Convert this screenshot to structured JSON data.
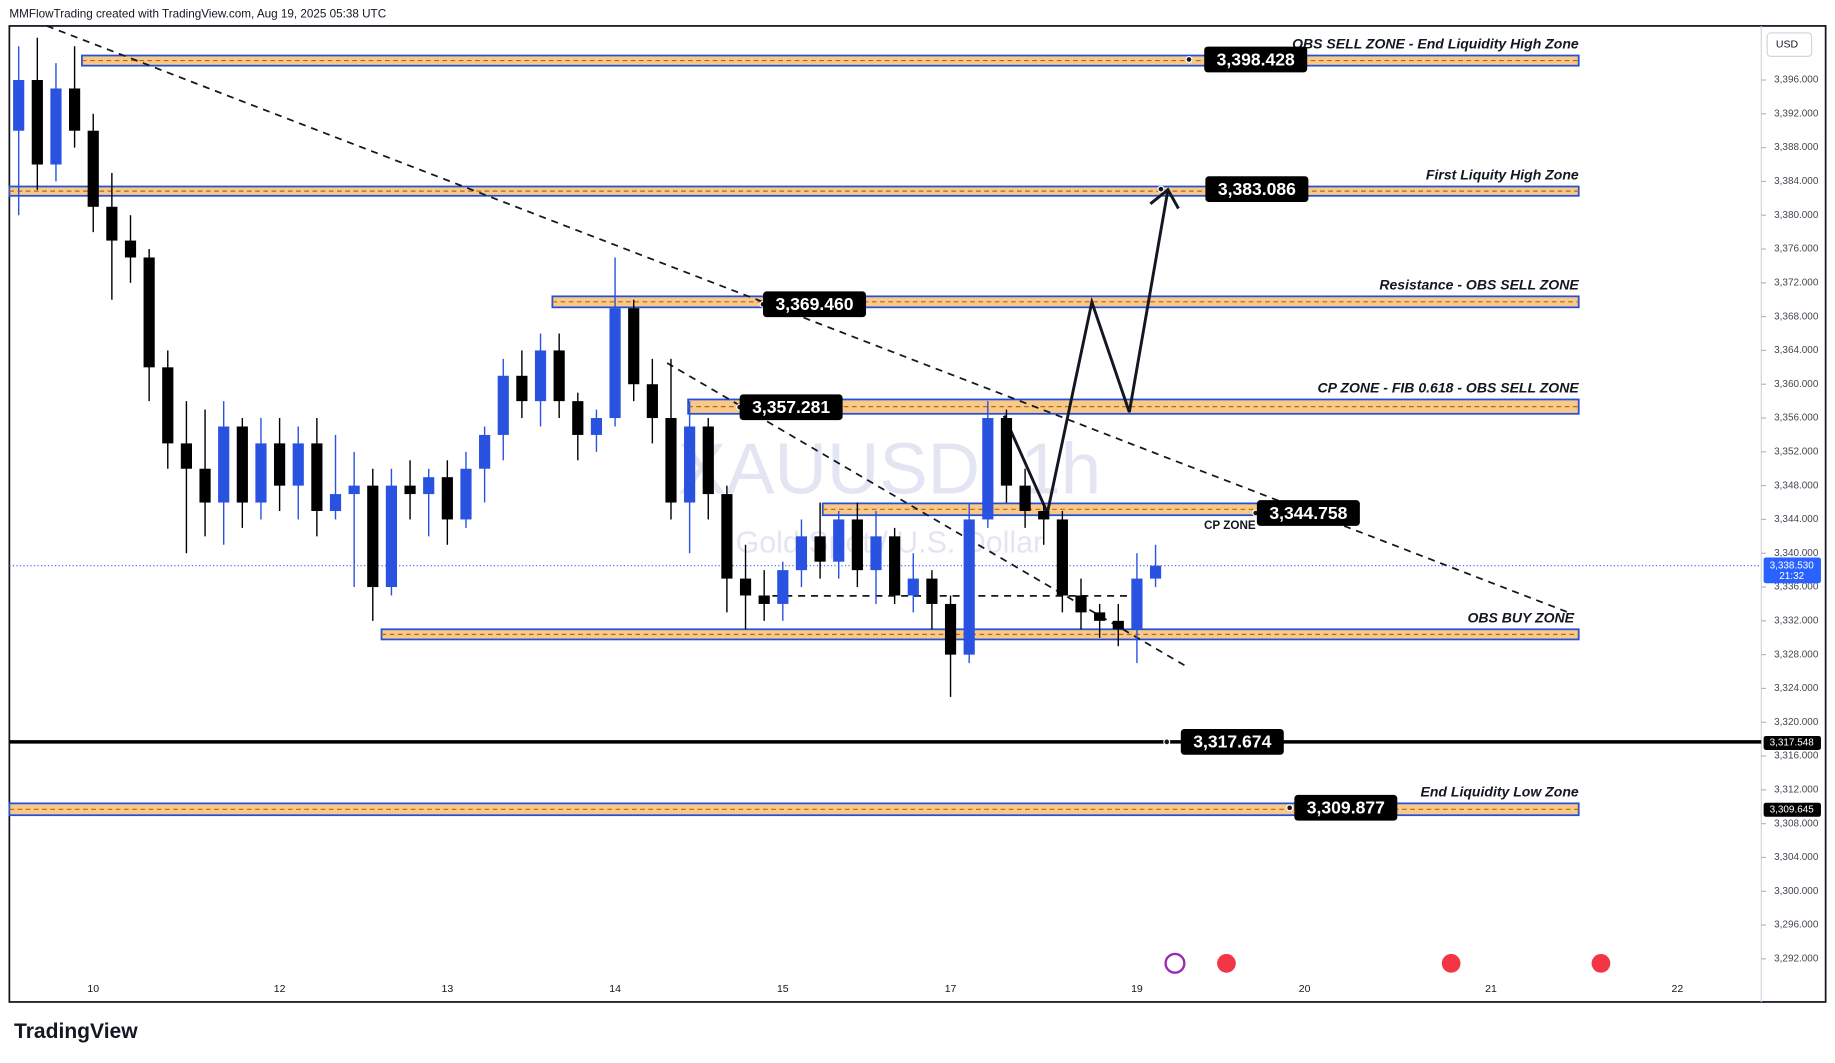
{
  "header": {
    "caption": "MMFlowTrading created with TradingView.com, Aug 19, 2025 05:38 UTC",
    "currency": "USD",
    "brand": "TradingView"
  },
  "chart_data": {
    "type": "candlestick",
    "title": "XAUUSD, 1h",
    "subtitle": "Gold Spot / U.S. Dollar",
    "up_color": "#2a52e0",
    "down_color": "#000000",
    "categories": [
      null,
      null,
      null,
      null,
      "10",
      null,
      null,
      null,
      null,
      null,
      null,
      null,
      null,
      null,
      "12",
      null,
      null,
      null,
      null,
      null,
      null,
      null,
      null,
      "13",
      null,
      null,
      null,
      null,
      null,
      null,
      null,
      null,
      "14",
      null,
      null,
      null,
      null,
      null,
      null,
      null,
      null,
      "15",
      null,
      null,
      null,
      null,
      null,
      null,
      null,
      null,
      "17",
      null,
      null,
      null,
      null,
      null,
      null,
      null,
      null,
      null,
      "19",
      null,
      null,
      null,
      null,
      null,
      null,
      null,
      null,
      "20",
      null,
      null,
      null,
      null,
      null,
      null,
      null,
      null,
      null,
      "21",
      null,
      null,
      null,
      null,
      null,
      null,
      null,
      null,
      null,
      "22",
      null,
      null,
      null,
      null
    ],
    "open": [
      3390,
      3396,
      3386,
      3395,
      3390,
      3381,
      3377,
      3375,
      3362,
      3353,
      3350,
      3346,
      3355,
      3346,
      3353,
      3348,
      3353,
      3345,
      3347,
      3348,
      3336,
      3348,
      3347,
      3349,
      3344,
      3350,
      3354,
      3361,
      3358,
      3364,
      3358,
      3354,
      3356,
      3369,
      3360,
      3356,
      3346,
      3355,
      3347,
      3337,
      3335,
      3334,
      3338,
      3342,
      3339,
      3344,
      3338,
      3342,
      3335,
      3337,
      3334,
      3328,
      3344,
      3356,
      3348,
      3345,
      3344,
      3335,
      3333,
      3332,
      3331,
      3337,
      null,
      null,
      null,
      null,
      null,
      null,
      null,
      null,
      null,
      null,
      null,
      null,
      null,
      null,
      null,
      null,
      null,
      null,
      null,
      null,
      null,
      null,
      null,
      null,
      null,
      null,
      null,
      null,
      null,
      null,
      null,
      null
    ],
    "high": [
      3400,
      3401,
      3398,
      3400,
      3392,
      3385,
      3380,
      3376,
      3364,
      3358,
      3357,
      3358,
      3356,
      3356,
      3356,
      3355,
      3356,
      3354,
      3352,
      3350,
      3350,
      3351,
      3350,
      3351,
      3352,
      3355,
      3363,
      3364,
      3366,
      3366,
      3359,
      3357,
      3375,
      3370,
      3363,
      3363,
      3358,
      3356,
      3348,
      3341,
      3338,
      3339,
      3344,
      3346,
      3345,
      3346,
      3345,
      3343,
      3340,
      3338,
      3335,
      3346,
      3358,
      3357,
      3350,
      3346,
      3345,
      3337,
      3334,
      3334,
      3340,
      3341,
      null,
      null,
      null,
      null,
      null,
      null,
      null,
      null,
      null,
      null,
      null,
      null,
      null,
      null,
      null,
      null,
      null,
      null,
      null,
      null,
      null,
      null,
      null,
      null,
      null,
      null,
      null,
      null,
      null,
      null,
      null,
      null
    ],
    "low": [
      3380,
      3383,
      3384,
      3388,
      3378,
      3370,
      3372,
      3358,
      3350,
      3340,
      3342,
      3341,
      3343,
      3344,
      3345,
      3344,
      3342,
      3344,
      3336,
      3332,
      3335,
      3344,
      3342,
      3341,
      3343,
      3346,
      3351,
      3356,
      3355,
      3356,
      3351,
      3352,
      3355,
      3358,
      3353,
      3344,
      3340,
      3344,
      3333,
      3331,
      3332,
      3332,
      3336,
      3337,
      3337,
      3336,
      3334,
      3334,
      3333,
      3331,
      3323,
      3327,
      3343,
      3346,
      3343,
      3341,
      3333,
      3331,
      3330,
      3329,
      3327,
      3336,
      null,
      null,
      null,
      null,
      null,
      null,
      null,
      null,
      null,
      null,
      null,
      null,
      null,
      null,
      null,
      null,
      null,
      null,
      null,
      null,
      null,
      null,
      null,
      null,
      null,
      null,
      null,
      null,
      null,
      null,
      null,
      null
    ],
    "close": [
      3396,
      3386,
      3395,
      3390,
      3381,
      3377,
      3375,
      3362,
      3353,
      3350,
      3346,
      3355,
      3346,
      3353,
      3348,
      3353,
      3345,
      3347,
      3348,
      3336,
      3348,
      3347,
      3349,
      3344,
      3350,
      3354,
      3361,
      3358,
      3364,
      3358,
      3354,
      3356,
      3369,
      3360,
      3356,
      3346,
      3355,
      3347,
      3337,
      3335,
      3334,
      3338,
      3342,
      3339,
      3344,
      3338,
      3342,
      3335,
      3337,
      3334,
      3328,
      3344,
      3356,
      3348,
      3345,
      3344,
      3335,
      3333,
      3332,
      3331,
      3337,
      3338.53,
      null,
      null,
      null,
      null,
      null,
      null,
      null,
      null,
      null,
      null,
      null,
      null,
      null,
      null,
      null,
      null,
      null,
      null,
      null,
      null,
      null,
      null,
      null,
      null,
      null,
      null,
      null,
      null,
      null,
      null,
      null,
      null
    ],
    "ylim": [
      3286.9,
      3402.4
    ],
    "yticks": [
      {
        "value": 3292,
        "label": "3,292.000"
      },
      {
        "value": 3296,
        "label": "3,296.000"
      },
      {
        "value": 3300,
        "label": "3,300.000"
      },
      {
        "value": 3304,
        "label": "3,304.000"
      },
      {
        "value": 3308,
        "label": "3,308.000"
      },
      {
        "value": 3312,
        "label": "3,312.000"
      },
      {
        "value": 3316,
        "label": "3,316.000"
      },
      {
        "value": 3320,
        "label": "3,320.000"
      },
      {
        "value": 3324,
        "label": "3,324.000"
      },
      {
        "value": 3328,
        "label": "3,328.000"
      },
      {
        "value": 3332,
        "label": "3,332.000"
      },
      {
        "value": 3336,
        "label": "3,336.000"
      },
      {
        "value": 3340,
        "label": "3,340.000"
      },
      {
        "value": 3344,
        "label": "3,344.000"
      },
      {
        "value": 3348,
        "label": "3,348.000"
      },
      {
        "value": 3352,
        "label": "3,352.000"
      },
      {
        "value": 3356,
        "label": "3,356.000"
      },
      {
        "value": 3360,
        "label": "3,360.000"
      },
      {
        "value": 3364,
        "label": "3,364.000"
      },
      {
        "value": 3368,
        "label": "3,368.000"
      },
      {
        "value": 3372,
        "label": "3,372.000"
      },
      {
        "value": 3376,
        "label": "3,376.000"
      },
      {
        "value": 3380,
        "label": "3,380.000"
      },
      {
        "value": 3384,
        "label": "3,384.000"
      },
      {
        "value": 3388,
        "label": "3,388.000"
      },
      {
        "value": 3392,
        "label": "3,392.000"
      },
      {
        "value": 3396,
        "label": "3,396.000"
      }
    ],
    "zones": [
      {
        "label": "OBS SELL ZONE  -  End Liquidity High Zone",
        "low": 3397.7,
        "high": 3398.9,
        "price": {
          "value": 3398.428,
          "label": "3,398.428"
        }
      },
      {
        "label": "First Liquity High Zone",
        "low": 3382.3,
        "high": 3383.4,
        "price": {
          "value": 3383.086,
          "label": "3,383.086"
        }
      },
      {
        "label": "Resistance - OBS SELL ZONE",
        "low": 3369.1,
        "high": 3370.4,
        "price": {
          "value": 3369.46,
          "label": "3,369.460"
        }
      },
      {
        "label": "CP ZONE - FIB 0.618 - OBS SELL ZONE",
        "low": 3356.5,
        "high": 3358.2,
        "price": {
          "value": 3357.281,
          "label": "3,357.281"
        }
      },
      {
        "label": "CP ZONE",
        "low": 3344.5,
        "high": 3345.9,
        "price": {
          "value": 3344.758,
          "label": "3,344.758"
        }
      },
      {
        "label": "OBS BUY ZONE",
        "low": 3329.8,
        "high": 3331.0
      },
      {
        "label": "End Liquidity Low Zone",
        "low": 3309.0,
        "high": 3310.4,
        "price": {
          "value": 3309.877,
          "label": "3,309.877"
        }
      }
    ],
    "price_line": {
      "value": 3317.674,
      "label": "3,317.674"
    },
    "last_price": {
      "value": 3338.53,
      "label": "3,338.530",
      "countdown": "21:32"
    },
    "axis_markers": [
      {
        "value": 3317.548,
        "label": "3,317.548"
      },
      {
        "value": 3309.645,
        "label": "3,309.645"
      }
    ]
  }
}
